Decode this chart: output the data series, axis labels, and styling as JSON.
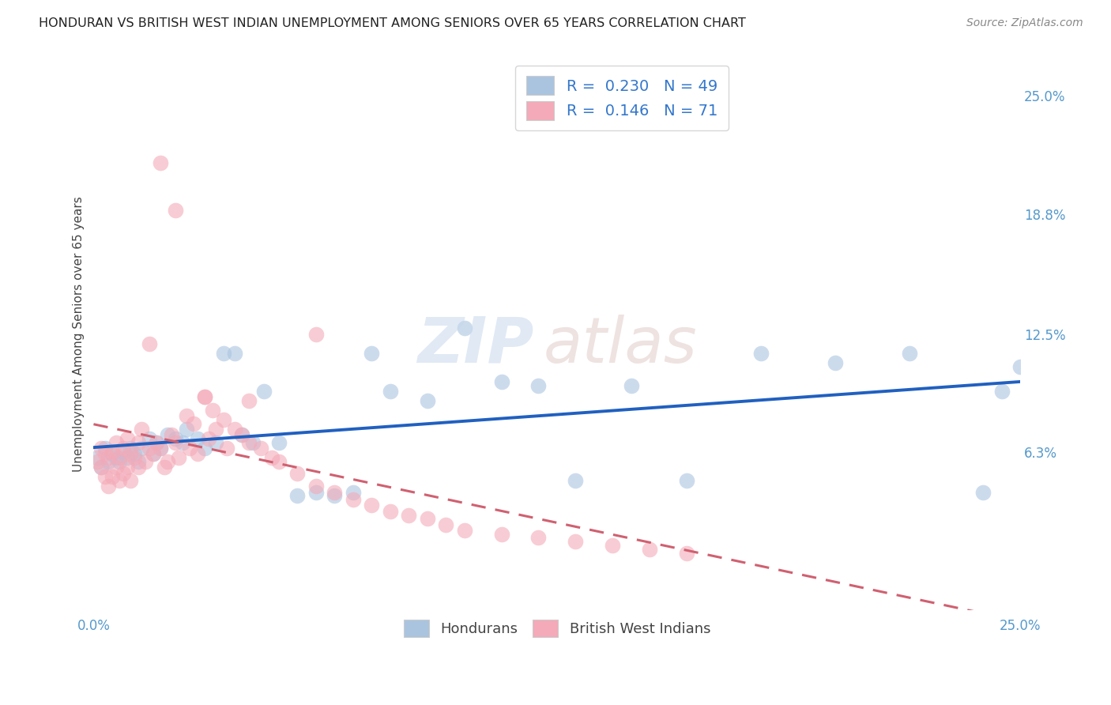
{
  "title": "HONDURAN VS BRITISH WEST INDIAN UNEMPLOYMENT AMONG SENIORS OVER 65 YEARS CORRELATION CHART",
  "source": "Source: ZipAtlas.com",
  "ylabel": "Unemployment Among Seniors over 65 years",
  "xlim": [
    0,
    0.25
  ],
  "ylim": [
    -0.02,
    0.27
  ],
  "xtick_positions": [
    0.0,
    0.05,
    0.1,
    0.15,
    0.2,
    0.25
  ],
  "xticklabels": [
    "0.0%",
    "",
    "",
    "",
    "",
    "25.0%"
  ],
  "ytick_values_right": [
    0.25,
    0.188,
    0.125,
    0.063,
    0.0
  ],
  "ytick_labels_right": [
    "25.0%",
    "18.8%",
    "12.5%",
    "6.3%",
    ""
  ],
  "honduran_color": "#aac4e0",
  "bwi_color": "#f4aab8",
  "honduran_line_color": "#2060c0",
  "bwi_line_color": "#d06070",
  "legend_text_1": "R =  0.230   N = 49",
  "legend_text_2": "R =  0.146   N = 71",
  "watermark_zip": "ZIP",
  "watermark_atlas": "atlas",
  "background_color": "#ffffff",
  "grid_color": "#dddddd",
  "hon_x": [
    0.001,
    0.002,
    0.003,
    0.004,
    0.005,
    0.006,
    0.007,
    0.008,
    0.009,
    0.01,
    0.011,
    0.012,
    0.013,
    0.015,
    0.016,
    0.017,
    0.018,
    0.02,
    0.022,
    0.024,
    0.025,
    0.028,
    0.03,
    0.033,
    0.035,
    0.038,
    0.04,
    0.043,
    0.046,
    0.05,
    0.055,
    0.06,
    0.065,
    0.07,
    0.075,
    0.08,
    0.09,
    0.1,
    0.11,
    0.12,
    0.13,
    0.145,
    0.16,
    0.18,
    0.2,
    0.22,
    0.24,
    0.245,
    0.25
  ],
  "hon_y": [
    0.06,
    0.055,
    0.065,
    0.058,
    0.062,
    0.06,
    0.058,
    0.063,
    0.06,
    0.065,
    0.062,
    0.058,
    0.065,
    0.07,
    0.062,
    0.068,
    0.065,
    0.072,
    0.07,
    0.068,
    0.075,
    0.07,
    0.065,
    0.068,
    0.115,
    0.115,
    0.072,
    0.068,
    0.095,
    0.068,
    0.04,
    0.042,
    0.04,
    0.042,
    0.115,
    0.095,
    0.09,
    0.128,
    0.1,
    0.098,
    0.048,
    0.098,
    0.048,
    0.115,
    0.11,
    0.115,
    0.042,
    0.095,
    0.108
  ],
  "bwi_x": [
    0.001,
    0.002,
    0.002,
    0.003,
    0.003,
    0.004,
    0.004,
    0.005,
    0.005,
    0.006,
    0.006,
    0.007,
    0.007,
    0.008,
    0.008,
    0.009,
    0.009,
    0.01,
    0.01,
    0.011,
    0.012,
    0.012,
    0.013,
    0.014,
    0.015,
    0.015,
    0.016,
    0.017,
    0.018,
    0.019,
    0.02,
    0.021,
    0.022,
    0.023,
    0.025,
    0.026,
    0.027,
    0.028,
    0.03,
    0.031,
    0.032,
    0.033,
    0.035,
    0.036,
    0.038,
    0.04,
    0.042,
    0.045,
    0.048,
    0.05,
    0.055,
    0.06,
    0.065,
    0.07,
    0.075,
    0.08,
    0.085,
    0.09,
    0.095,
    0.1,
    0.11,
    0.12,
    0.13,
    0.14,
    0.15,
    0.16,
    0.018,
    0.022,
    0.03,
    0.042,
    0.06
  ],
  "bwi_y": [
    0.058,
    0.065,
    0.055,
    0.062,
    0.05,
    0.06,
    0.045,
    0.063,
    0.05,
    0.068,
    0.055,
    0.06,
    0.048,
    0.065,
    0.052,
    0.07,
    0.055,
    0.062,
    0.048,
    0.06,
    0.068,
    0.055,
    0.075,
    0.058,
    0.12,
    0.065,
    0.062,
    0.068,
    0.065,
    0.055,
    0.058,
    0.072,
    0.068,
    0.06,
    0.082,
    0.065,
    0.078,
    0.062,
    0.092,
    0.07,
    0.085,
    0.075,
    0.08,
    0.065,
    0.075,
    0.072,
    0.068,
    0.065,
    0.06,
    0.058,
    0.052,
    0.045,
    0.042,
    0.038,
    0.035,
    0.032,
    0.03,
    0.028,
    0.025,
    0.022,
    0.02,
    0.018,
    0.016,
    0.014,
    0.012,
    0.01,
    0.215,
    0.19,
    0.092,
    0.09,
    0.125
  ]
}
